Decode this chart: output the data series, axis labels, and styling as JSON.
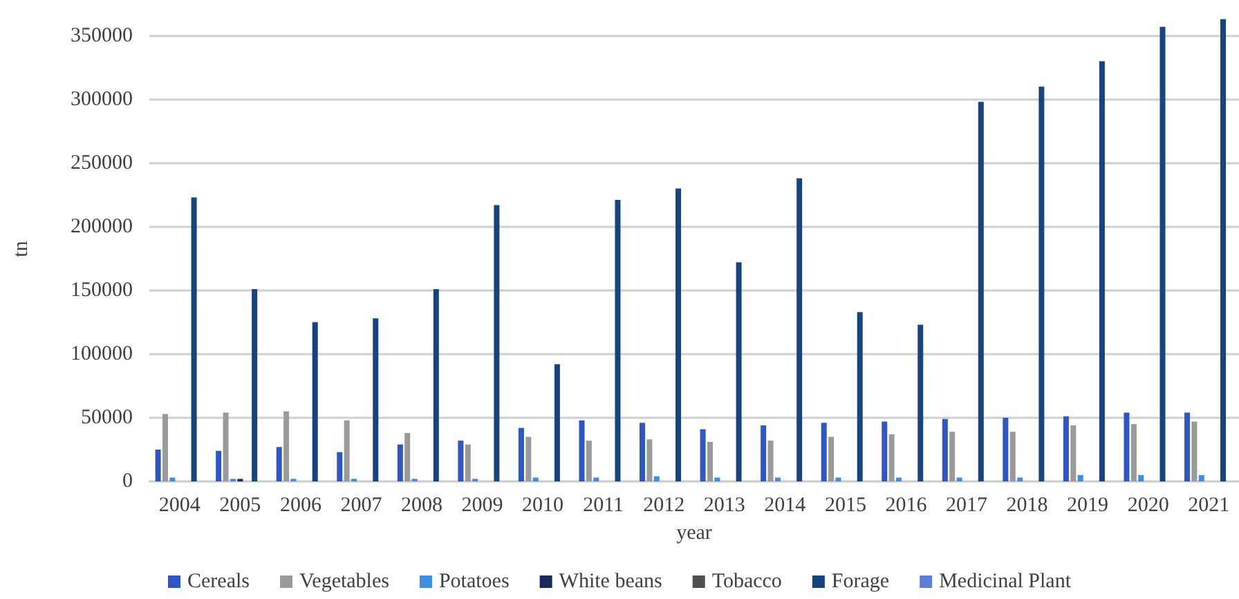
{
  "chart_data": {
    "type": "bar",
    "xlabel": "year",
    "ylabel": "tn",
    "categories": [
      "2004",
      "2005",
      "2006",
      "2007",
      "2008",
      "2009",
      "2010",
      "2011",
      "2012",
      "2013",
      "2014",
      "2015",
      "2016",
      "2017",
      "2018",
      "2019",
      "2020",
      "2021"
    ],
    "series": [
      {
        "name": "Cereals",
        "color": "#2e56c4",
        "values": [
          25000,
          24000,
          27000,
          23000,
          29000,
          32000,
          42000,
          48000,
          46000,
          41000,
          44000,
          46000,
          47000,
          49000,
          50000,
          51000,
          54000,
          54000
        ]
      },
      {
        "name": "Vegetables",
        "color": "#9a9a9a",
        "values": [
          53000,
          54000,
          55000,
          48000,
          38000,
          29000,
          35000,
          32000,
          33000,
          31000,
          32000,
          35000,
          37000,
          39000,
          39000,
          44000,
          45000,
          47000
        ]
      },
      {
        "name": "Potatoes",
        "color": "#3d8ee0",
        "values": [
          3000,
          2000,
          2000,
          2000,
          2000,
          2000,
          3000,
          3000,
          4000,
          3000,
          3000,
          3000,
          3000,
          3000,
          3000,
          5000,
          5000,
          5000
        ]
      },
      {
        "name": "White beans",
        "color": "#1b2a5c",
        "values": [
          null,
          2000,
          null,
          null,
          null,
          null,
          null,
          null,
          null,
          null,
          null,
          null,
          null,
          null,
          null,
          null,
          null,
          null
        ]
      },
      {
        "name": "Tobacco",
        "color": "#505050",
        "values": [
          null,
          null,
          null,
          null,
          null,
          null,
          null,
          null,
          null,
          null,
          null,
          null,
          null,
          null,
          null,
          null,
          null,
          null
        ]
      },
      {
        "name": "Forage",
        "color": "#17437e",
        "values": [
          223000,
          151000,
          125000,
          128000,
          151000,
          217000,
          92000,
          221000,
          230000,
          172000,
          238000,
          133000,
          123000,
          298000,
          310000,
          330000,
          357000,
          363000
        ]
      },
      {
        "name": "Medicinal Plant",
        "color": "#5b7fd6",
        "values": [
          null,
          null,
          null,
          null,
          null,
          null,
          null,
          null,
          null,
          null,
          null,
          null,
          null,
          null,
          null,
          null,
          null,
          null
        ]
      }
    ],
    "ylim": [
      0,
      365000
    ],
    "yticks": [
      0,
      50000,
      100000,
      150000,
      200000,
      250000,
      300000,
      350000
    ],
    "grid": "y",
    "legend": "bottom"
  }
}
